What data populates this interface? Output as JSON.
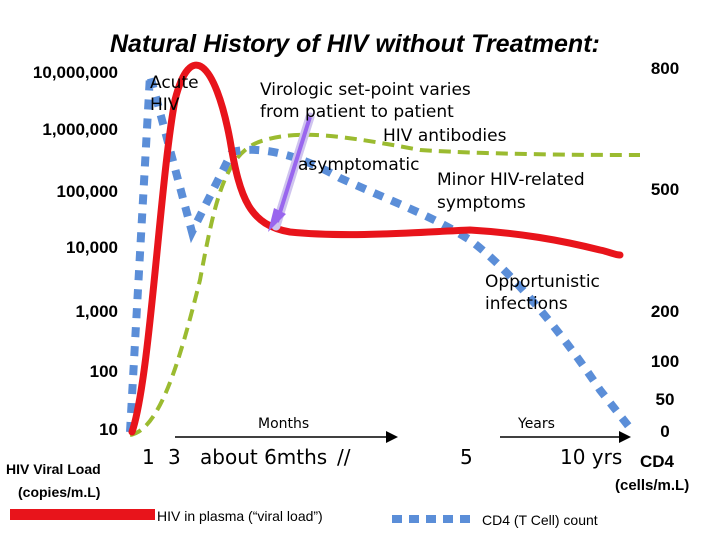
{
  "chart_data": {
    "type": "line",
    "title": "Natural History of HIV without Treatment:",
    "left_axis": {
      "label_line1": "HIV Viral Load",
      "label_line2": "(copies/m.L)",
      "scale": "log",
      "ticks": [
        "10,000,000",
        "1,000,000",
        "100,000",
        "10,000",
        "1,000",
        "100",
        "10"
      ]
    },
    "right_axis": {
      "label_line1": "CD4",
      "label_line2": "(cells/m.L)",
      "ticks": [
        "800",
        "500",
        "200",
        "100",
        "50",
        "0"
      ]
    },
    "x_axis": {
      "ticks": [
        "1",
        "3",
        "about 6mths",
        "//",
        "5",
        "10 yrs"
      ],
      "months_label": "Months",
      "years_label": "Years"
    },
    "series": [
      {
        "name": "HIV in plasma (“viral load”)",
        "color": "#e8141b",
        "style": "solid",
        "points": [
          [
            0,
            10
          ],
          [
            1,
            1000
          ],
          [
            2,
            1000000
          ],
          [
            3,
            3000000
          ],
          [
            4,
            800000
          ],
          [
            5,
            60000
          ],
          [
            6,
            18000
          ],
          [
            8,
            15000
          ],
          [
            10,
            15000
          ],
          [
            12,
            16000
          ],
          [
            14,
            15000
          ]
        ]
      },
      {
        "name": "CD4 (T Cell) count",
        "color": "#5b8ed8",
        "style": "dashed",
        "points": [
          [
            0,
            0
          ],
          [
            1,
            650
          ],
          [
            2,
            820
          ],
          [
            3,
            330
          ],
          [
            4,
            600
          ],
          [
            5,
            640
          ],
          [
            7,
            560
          ],
          [
            9,
            480
          ],
          [
            11,
            340
          ],
          [
            13,
            160
          ],
          [
            14,
            50
          ]
        ]
      },
      {
        "name": "HIV antibodies",
        "color": "#9bbb30",
        "style": "dashed",
        "points": [
          [
            0,
            0
          ],
          [
            2,
            60
          ],
          [
            3,
            200
          ],
          [
            4,
            560
          ],
          [
            5,
            600
          ],
          [
            8,
            560
          ],
          [
            11,
            520
          ],
          [
            14,
            520
          ]
        ]
      }
    ],
    "annotations": {
      "acute_l1": "Acute",
      "acute_l2": "HIV",
      "setpoint_l1": "Virologic set-point varies",
      "setpoint_l2": "from patient to patient",
      "antibodies": "HIV antibodies",
      "asymptomatic": "asymptomatic",
      "minor_l1": "Minor HIV-related",
      "minor_l2": "symptoms",
      "oi_l1": "Opportunistic",
      "oi_l2": "infections"
    },
    "colors": {
      "viral_load": "#e8141b",
      "cd4": "#5b8ed8",
      "antibodies": "#9bbb30",
      "arrow": "#9966ee",
      "arrow_outline": "#cfc4ee"
    }
  }
}
